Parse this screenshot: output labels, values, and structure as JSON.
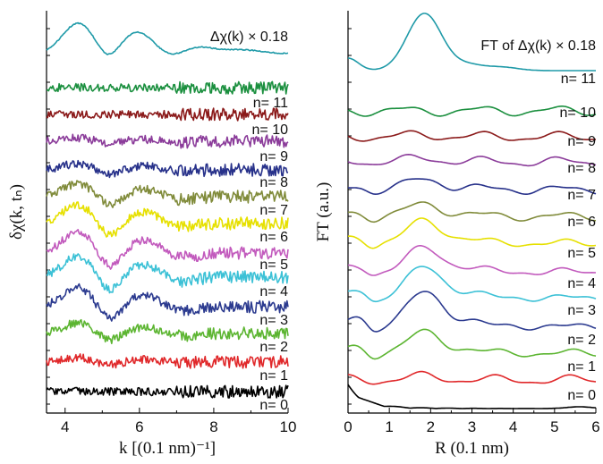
{
  "chart_data": [
    {
      "type": "line",
      "panel": "left",
      "title": "Δχ(k) × 0.18",
      "xlabel": "k [(0.1 nm)⁻¹]",
      "ylabel": "δχ(k, tₙ)",
      "xlim": [
        3.5,
        10
      ],
      "xticks": [
        "4",
        "6",
        "8",
        "10"
      ],
      "y_tick_labels": false,
      "traces_offset_vertically": true,
      "series": [
        {
          "name": "n= 0",
          "color": "#000000",
          "shape": "noise",
          "feature_amp": 0.0
        },
        {
          "name": "n= 1",
          "color": "#e0282a",
          "shape": "noise",
          "feature_amp": 0.2
        },
        {
          "name": "n= 2",
          "color": "#5cb531",
          "shape": "noise",
          "feature_amp": 0.5
        },
        {
          "name": "n= 3",
          "color": "#2b3a8f",
          "shape": "exafs",
          "feature_amp": 0.9
        },
        {
          "name": "n= 4",
          "color": "#3cc1d6",
          "shape": "exafs",
          "feature_amp": 1.0
        },
        {
          "name": "n= 5",
          "color": "#c25abd",
          "shape": "exafs",
          "feature_amp": 1.0
        },
        {
          "name": "n= 6",
          "color": "#e6e000",
          "shape": "exafs",
          "feature_amp": 0.9
        },
        {
          "name": "n= 7",
          "color": "#808b3a",
          "shape": "exafs",
          "feature_amp": 0.6
        },
        {
          "name": "n= 8",
          "color": "#27318a",
          "shape": "noise",
          "feature_amp": 0.3
        },
        {
          "name": "n= 9",
          "color": "#8b3c9a",
          "shape": "noise",
          "feature_amp": 0.15
        },
        {
          "name": "n= 10",
          "color": "#8b1a1a",
          "shape": "noise",
          "feature_amp": 0.0
        },
        {
          "name": "n= 11",
          "color": "#1a8f3e",
          "shape": "noise",
          "feature_amp": 0.0
        },
        {
          "name": "Δχ(k) × 0.18",
          "color": "#1f9aa8",
          "shape": "smooth",
          "feature_amp": 1.0
        }
      ]
    },
    {
      "type": "line",
      "panel": "right",
      "title": "FT of Δχ(k) × 0.18",
      "xlabel": "R (0.1 nm)",
      "ylabel": "FT (a.u.)",
      "xlim": [
        0,
        6
      ],
      "xticks": [
        "0",
        "1",
        "2",
        "3",
        "4",
        "5",
        "6"
      ],
      "y_tick_labels": false,
      "traces_offset_vertically": true,
      "series": [
        {
          "name": "n= 0",
          "color": "#000000",
          "peak_amp": 0.0
        },
        {
          "name": "n= 1",
          "color": "#e0282a",
          "peak_amp": 0.1
        },
        {
          "name": "n= 2",
          "color": "#5cb531",
          "peak_amp": 0.6
        },
        {
          "name": "n= 3",
          "color": "#2b3a8f",
          "peak_amp": 1.0
        },
        {
          "name": "n= 4",
          "color": "#3cc1d6",
          "peak_amp": 0.9
        },
        {
          "name": "n= 5",
          "color": "#c25abd",
          "peak_amp": 0.7
        },
        {
          "name": "n= 6",
          "color": "#e6e000",
          "peak_amp": 0.65
        },
        {
          "name": "n= 7",
          "color": "#808b3a",
          "peak_amp": 0.35
        },
        {
          "name": "n= 8",
          "color": "#27318a",
          "peak_amp": 0.3
        },
        {
          "name": "n= 9",
          "color": "#8b3c9a",
          "peak_amp": 0.1
        },
        {
          "name": "n= 10",
          "color": "#8b1a1a",
          "peak_amp": 0.05
        },
        {
          "name": "n= 11",
          "color": "#1a8f3e",
          "peak_amp": 0.0
        },
        {
          "name": "FT of Δχ(k) × 0.18",
          "color": "#1f9aa8",
          "peak_amp": 1.0
        }
      ]
    }
  ]
}
